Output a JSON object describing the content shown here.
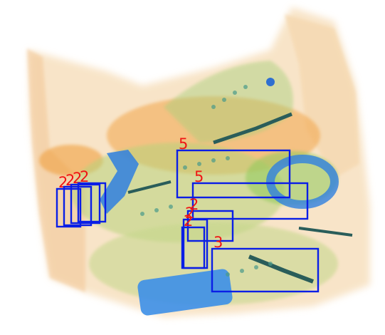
{
  "image": {
    "subject": "x-ray scan of luggage",
    "colors": {
      "box_stroke": "#0a1ee6",
      "label_text": "#f01414",
      "background": "#ffffff",
      "bag_fill": "#f6d9b0",
      "organic_orange": "#f2a548",
      "organic_green": "#8fca5a",
      "metal_blue": "#2f7fe0",
      "dark_teal": "#2a5d5a"
    }
  },
  "annotations": [
    {
      "label": "2"
    },
    {
      "label": "2"
    },
    {
      "label": "2"
    },
    {
      "label": "2"
    },
    {
      "label": "5"
    },
    {
      "label": "5"
    },
    {
      "label": "2"
    },
    {
      "label": "2"
    },
    {
      "label": "2"
    },
    {
      "label": "3"
    }
  ]
}
